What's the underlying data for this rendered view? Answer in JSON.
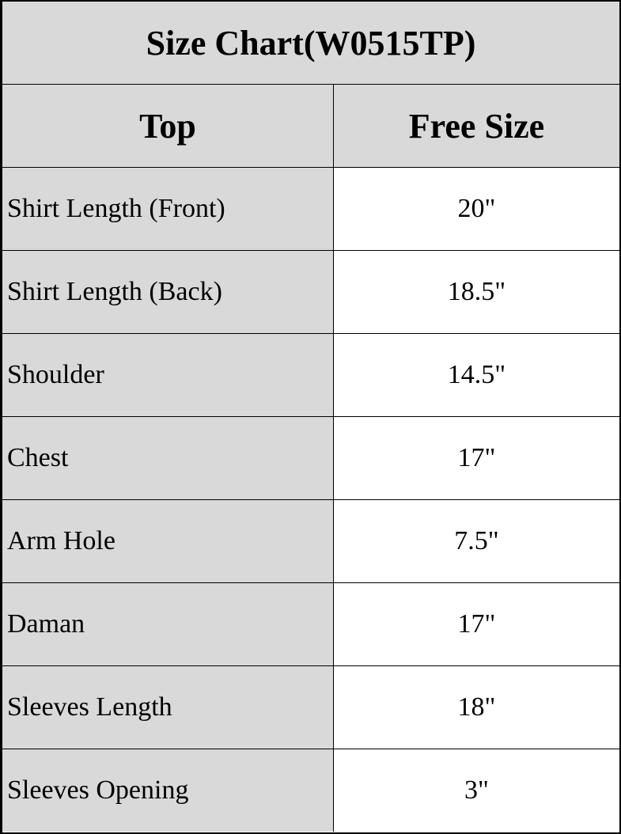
{
  "title": "Size Chart(W0515TP)",
  "columns": [
    "Top",
    "Free Size"
  ],
  "rows": [
    {
      "label": "Shirt Length (Front)",
      "value": "20\""
    },
    {
      "label": "Shirt Length (Back)",
      "value": "18.5\""
    },
    {
      "label": "Shoulder",
      "value": "14.5\""
    },
    {
      "label": "Chest",
      "value": "17\""
    },
    {
      "label": "Arm Hole",
      "value": "7.5\""
    },
    {
      "label": "Daman",
      "value": "17\""
    },
    {
      "label": "Sleeves Length",
      "value": "18\""
    },
    {
      "label": "Sleeves Opening",
      "value": "3\""
    }
  ],
  "colors": {
    "header_bg": "#d9d9d9",
    "label_bg": "#d9d9d9",
    "value_bg": "#ffffff",
    "border": "#000000"
  }
}
